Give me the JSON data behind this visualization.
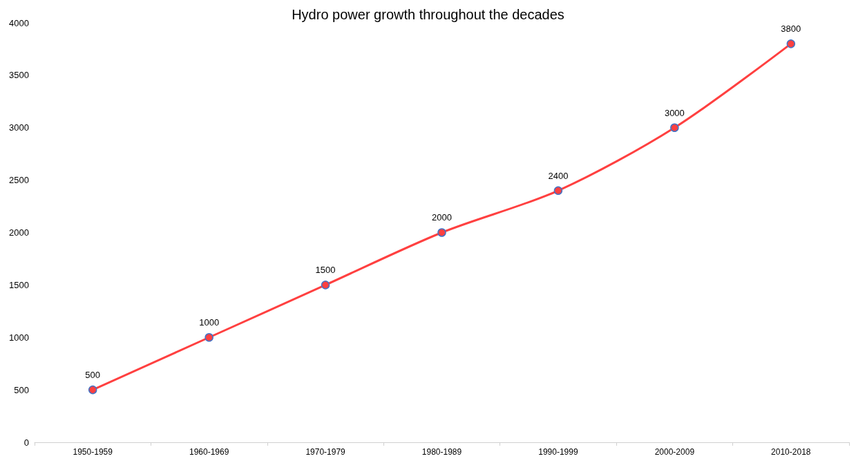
{
  "chart_data": {
    "type": "line",
    "title": "Hydro power growth throughout the decades",
    "categories": [
      "1950-1959",
      "1960-1969",
      "1970-1979",
      "1980-1989",
      "1990-1999",
      "2000-2009",
      "2010-2018"
    ],
    "series": [
      {
        "color": "#ff4040",
        "values": [
          500,
          1000,
          1500,
          2000,
          2400,
          3000,
          3800
        ]
      }
    ],
    "ylim": [
      0,
      4000
    ],
    "yticks": [
      0,
      500,
      1000,
      1500,
      2000,
      2500,
      3000,
      3500,
      4000
    ],
    "grid": false,
    "marker": "circle",
    "line_style": "solid",
    "data_labels": true
  }
}
